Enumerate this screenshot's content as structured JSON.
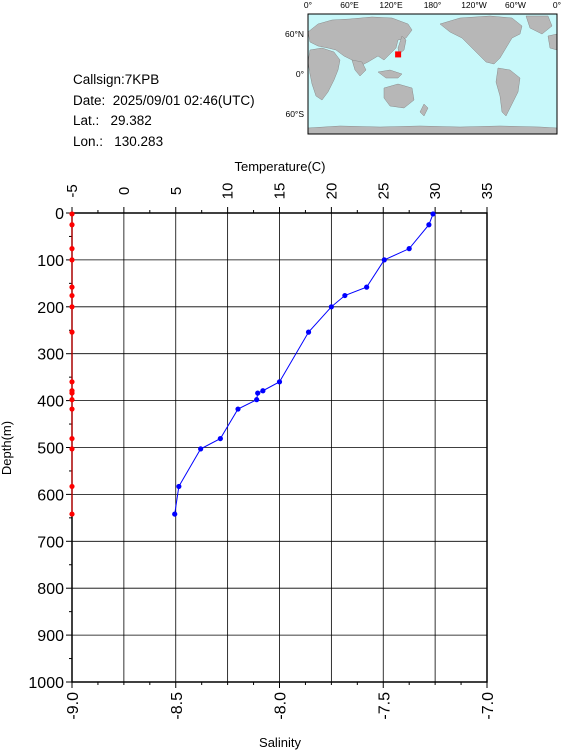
{
  "info": {
    "callsign": "Callsign:7KPB",
    "date": "Date:  2025/09/01 02:46(UTC)",
    "lat": "Lat.:   29.382",
    "lon": "Lon.:   130.283"
  },
  "map": {
    "lon_ticks": [
      "0°",
      "60°E",
      "120°E",
      "180°",
      "120°W",
      "60°W",
      "0°"
    ],
    "lat_ticks": [
      "60°N",
      "0°",
      "60°S"
    ],
    "colors": {
      "ocean": "#c8f8fa",
      "land": "#b7b7b7",
      "marker": "#ff0000"
    },
    "station": {
      "lat": 29.382,
      "lon": 130.283
    }
  },
  "chart_data": {
    "type": "line",
    "temperature_axis": {
      "title": "Temperature(C)",
      "range": [
        -5,
        35
      ],
      "ticks": [
        -5,
        0,
        5,
        10,
        15,
        20,
        25,
        30,
        35
      ],
      "tick_labels": [
        "-5",
        "0",
        "5",
        "10",
        "15",
        "20",
        "25",
        "30",
        "35"
      ]
    },
    "depth_axis": {
      "title": "Depth(m)",
      "range": [
        0,
        1000
      ],
      "ticks": [
        0,
        100,
        200,
        300,
        400,
        500,
        600,
        700,
        800,
        900,
        1000
      ],
      "tick_labels": [
        "0",
        "100",
        "200",
        "300",
        "400",
        "500",
        "600",
        "700",
        "800",
        "900",
        "1000"
      ]
    },
    "salinity_axis": {
      "title": "Salinity",
      "range": [
        -9.0,
        -7.0
      ],
      "ticks": [
        -9.0,
        -8.5,
        -8.0,
        -7.5,
        -7.0
      ],
      "tick_labels": [
        "-9.0",
        "-8.5",
        "-8.0",
        "-7.5",
        "-7.0"
      ]
    },
    "grid": true,
    "series": [
      {
        "color": "#0000ff",
        "axis": "temperature",
        "points": [
          {
            "t": 29.8,
            "d": 2
          },
          {
            "t": 29.4,
            "d": 25
          },
          {
            "t": 27.5,
            "d": 76
          },
          {
            "t": 25.1,
            "d": 100
          },
          {
            "t": 23.4,
            "d": 158
          },
          {
            "t": 21.3,
            "d": 176
          },
          {
            "t": 20.0,
            "d": 200
          },
          {
            "t": 17.8,
            "d": 254
          },
          {
            "t": 15.0,
            "d": 360
          },
          {
            "t": 13.4,
            "d": 379
          },
          {
            "t": 12.9,
            "d": 384
          },
          {
            "t": 12.8,
            "d": 398
          },
          {
            "t": 11.0,
            "d": 418
          },
          {
            "t": 9.3,
            "d": 481
          },
          {
            "t": 7.4,
            "d": 503
          },
          {
            "t": 5.3,
            "d": 583
          },
          {
            "t": 4.9,
            "d": 642
          }
        ]
      },
      {
        "color": "#ff0000",
        "axis": "salinity",
        "points": [
          {
            "s": -9.0,
            "d": 2
          },
          {
            "s": -9.0,
            "d": 25
          },
          {
            "s": -9.0,
            "d": 76
          },
          {
            "s": -9.0,
            "d": 100
          },
          {
            "s": -9.0,
            "d": 158
          },
          {
            "s": -9.0,
            "d": 176
          },
          {
            "s": -9.0,
            "d": 200
          },
          {
            "s": -9.0,
            "d": 254
          },
          {
            "s": -9.0,
            "d": 360
          },
          {
            "s": -9.0,
            "d": 379
          },
          {
            "s": -9.0,
            "d": 384
          },
          {
            "s": -9.0,
            "d": 398
          },
          {
            "s": -9.0,
            "d": 418
          },
          {
            "s": -9.0,
            "d": 481
          },
          {
            "s": -9.0,
            "d": 503
          },
          {
            "s": -9.0,
            "d": 583
          },
          {
            "s": -9.0,
            "d": 642
          }
        ]
      }
    ]
  }
}
